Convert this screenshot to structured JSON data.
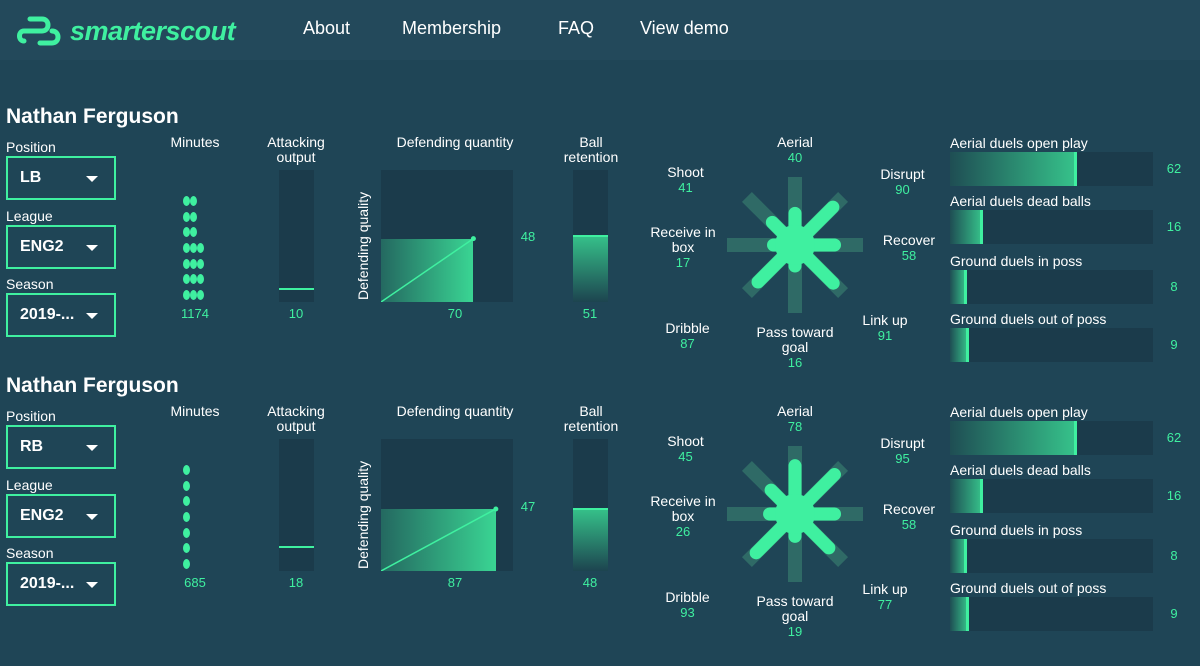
{
  "brand": {
    "name": "smarterscout",
    "accent": "#3ff0a0"
  },
  "nav": [
    "About",
    "Membership",
    "FAQ",
    "View demo"
  ],
  "labels": {
    "position": "Position",
    "league": "League",
    "season": "Season",
    "minutes": "Minutes",
    "attacking": "Attacking output",
    "defending_quantity": "Defending quantity",
    "defending_quality": "Defending quality",
    "ball_retention": "Ball retention"
  },
  "players": [
    {
      "name": "Nathan Ferguson",
      "position": "LB",
      "league": "ENG2",
      "season": "2019-...",
      "minutes": "1174",
      "minute_columns": [
        7,
        7,
        4
      ],
      "attacking_output": "10",
      "defending_quantity": "70",
      "defending_quality": "48",
      "ball_retention": "51",
      "radar": [
        {
          "label": "Aerial",
          "value": "40"
        },
        {
          "label": "Disrupt",
          "value": "90"
        },
        {
          "label": "Recover",
          "value": "58"
        },
        {
          "label": "Link up",
          "value": "91"
        },
        {
          "label": "Pass toward goal",
          "value": "16"
        },
        {
          "label": "Dribble",
          "value": "87"
        },
        {
          "label": "Receive in box",
          "value": "17"
        },
        {
          "label": "Shoot",
          "value": "41"
        }
      ],
      "duels": [
        {
          "label": "Aerial duels open play",
          "value": "62"
        },
        {
          "label": "Aerial duels dead balls",
          "value": "16"
        },
        {
          "label": "Ground duels in poss",
          "value": "8"
        },
        {
          "label": "Ground duels out of poss",
          "value": "9"
        }
      ]
    },
    {
      "name": "Nathan Ferguson",
      "position": "RB",
      "league": "ENG2",
      "season": "2019-...",
      "minutes": "685",
      "minute_columns": [
        7
      ],
      "attacking_output": "18",
      "defending_quantity": "87",
      "defending_quality": "47",
      "ball_retention": "48",
      "radar": [
        {
          "label": "Aerial",
          "value": "78"
        },
        {
          "label": "Disrupt",
          "value": "95"
        },
        {
          "label": "Recover",
          "value": "58"
        },
        {
          "label": "Link up",
          "value": "77"
        },
        {
          "label": "Pass toward goal",
          "value": "19"
        },
        {
          "label": "Dribble",
          "value": "93"
        },
        {
          "label": "Receive in box",
          "value": "26"
        },
        {
          "label": "Shoot",
          "value": "45"
        }
      ],
      "duels": [
        {
          "label": "Aerial duels open play",
          "value": "62"
        },
        {
          "label": "Aerial duels dead balls",
          "value": "16"
        },
        {
          "label": "Ground duels in poss",
          "value": "8"
        },
        {
          "label": "Ground duels out of poss",
          "value": "9"
        }
      ]
    }
  ]
}
